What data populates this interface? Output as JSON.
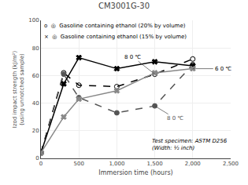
{
  "chart_data": {
    "type": "line",
    "title": "CM3001G-30",
    "x_label": "Immersion time (hours)",
    "y_label": "Izod impact strength (kJ/m²)\n(using unnotched sample)",
    "xlim": [
      0,
      2500
    ],
    "ylim": [
      0,
      100
    ],
    "xticks": [
      0,
      500,
      {
        "value": 1000,
        "label": "1,000"
      },
      {
        "value": 1500,
        "label": "1,500"
      },
      {
        "value": 2000,
        "label": "2,000"
      },
      {
        "value": 2500,
        "label": "2,500"
      }
    ],
    "yticks": [
      0,
      20,
      40,
      60,
      80,
      100
    ],
    "grid": true,
    "series": [
      {
        "x": [
          0,
          300,
          500,
          1000,
          1500,
          2000
        ],
        "values": [
          4,
          62,
          53,
          52,
          61,
          72
        ],
        "color": "#000000",
        "marker": "circle-open",
        "line_style": "dash"
      },
      {
        "x": [
          0,
          300,
          500,
          1000,
          1500,
          2000
        ],
        "values": [
          4,
          61,
          44,
          33,
          38,
          68
        ],
        "color": "#555555",
        "marker": "circle",
        "line_style": "dash"
      },
      {
        "x": [
          0,
          300,
          500,
          1000,
          1500,
          2000
        ],
        "values": [
          4,
          54,
          73,
          65,
          70,
          67
        ],
        "color": "#000000",
        "marker": "x",
        "line_style": "solid"
      },
      {
        "x": [
          0,
          300,
          500,
          1000,
          1500,
          2000
        ],
        "values": [
          4,
          30,
          43,
          49,
          62,
          65
        ],
        "color": "#888888",
        "marker": "x",
        "line_style": "solid"
      }
    ],
    "annotations": [
      "o  ◎  Gasoline containing ethanol (20% by volume)",
      "×  ◎  Gasoline containing ethanol (15% by volume)",
      "8 0 ℃",
      "6 0 ℃",
      "8 0 ℃",
      "Test specimen: ASTM D256\n(Width: ½ inch)"
    ]
  }
}
